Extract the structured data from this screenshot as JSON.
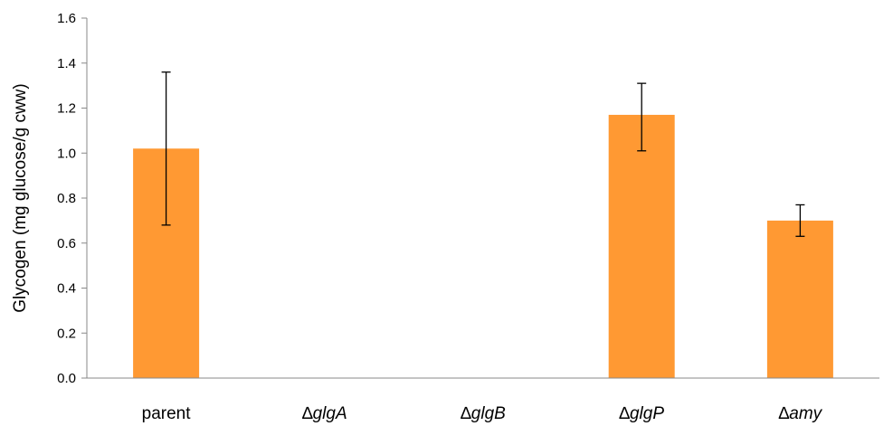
{
  "chart_data": {
    "type": "bar",
    "title": "",
    "xlabel": "",
    "ylabel": "Glycogen (mg glucose/g cww)",
    "ylim": [
      0,
      1.6
    ],
    "yticks": [
      "0.0",
      "0.2",
      "0.4",
      "0.6",
      "0.8",
      "1.0",
      "1.2",
      "1.4",
      "1.6"
    ],
    "categories": [
      {
        "prefix": "",
        "name": "parent",
        "italic": false
      },
      {
        "prefix": "∆",
        "name": "glgA",
        "italic": true
      },
      {
        "prefix": "∆",
        "name": "glgB",
        "italic": true
      },
      {
        "prefix": "∆",
        "name": "glgP",
        "italic": true
      },
      {
        "prefix": "∆",
        "name": "amy",
        "italic": true
      }
    ],
    "values": [
      1.02,
      0,
      0,
      1.17,
      0.7
    ],
    "error_low": [
      0.68,
      null,
      null,
      1.01,
      0.63
    ],
    "error_high": [
      1.36,
      null,
      null,
      1.31,
      0.77
    ],
    "bar_color": "#FF9933",
    "error_bar_color": "#000000",
    "grid": false,
    "legend": "none"
  }
}
